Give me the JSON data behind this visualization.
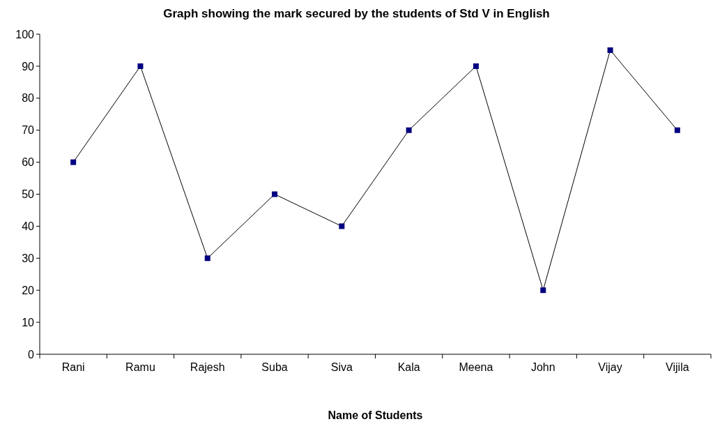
{
  "chart_data": {
    "type": "line",
    "title": "Graph showing the mark secured by the students of Std V in English",
    "xlabel": "Name of Students",
    "categories": [
      "Rani",
      "Ramu",
      "Rajesh",
      "Suba",
      "Siva",
      "Kala",
      "Meena",
      "John",
      "Vijay",
      "Vijila"
    ],
    "series": [
      {
        "color": "#000080",
        "values": [
          60,
          90,
          30,
          50,
          40,
          70,
          90,
          20,
          95,
          70
        ]
      }
    ],
    "ylim": [
      0,
      100
    ],
    "yticks": [
      0,
      10,
      20,
      30,
      40,
      50,
      60,
      70,
      80,
      90,
      100
    ],
    "marker": "square",
    "line_style": "solid",
    "grid": false
  }
}
